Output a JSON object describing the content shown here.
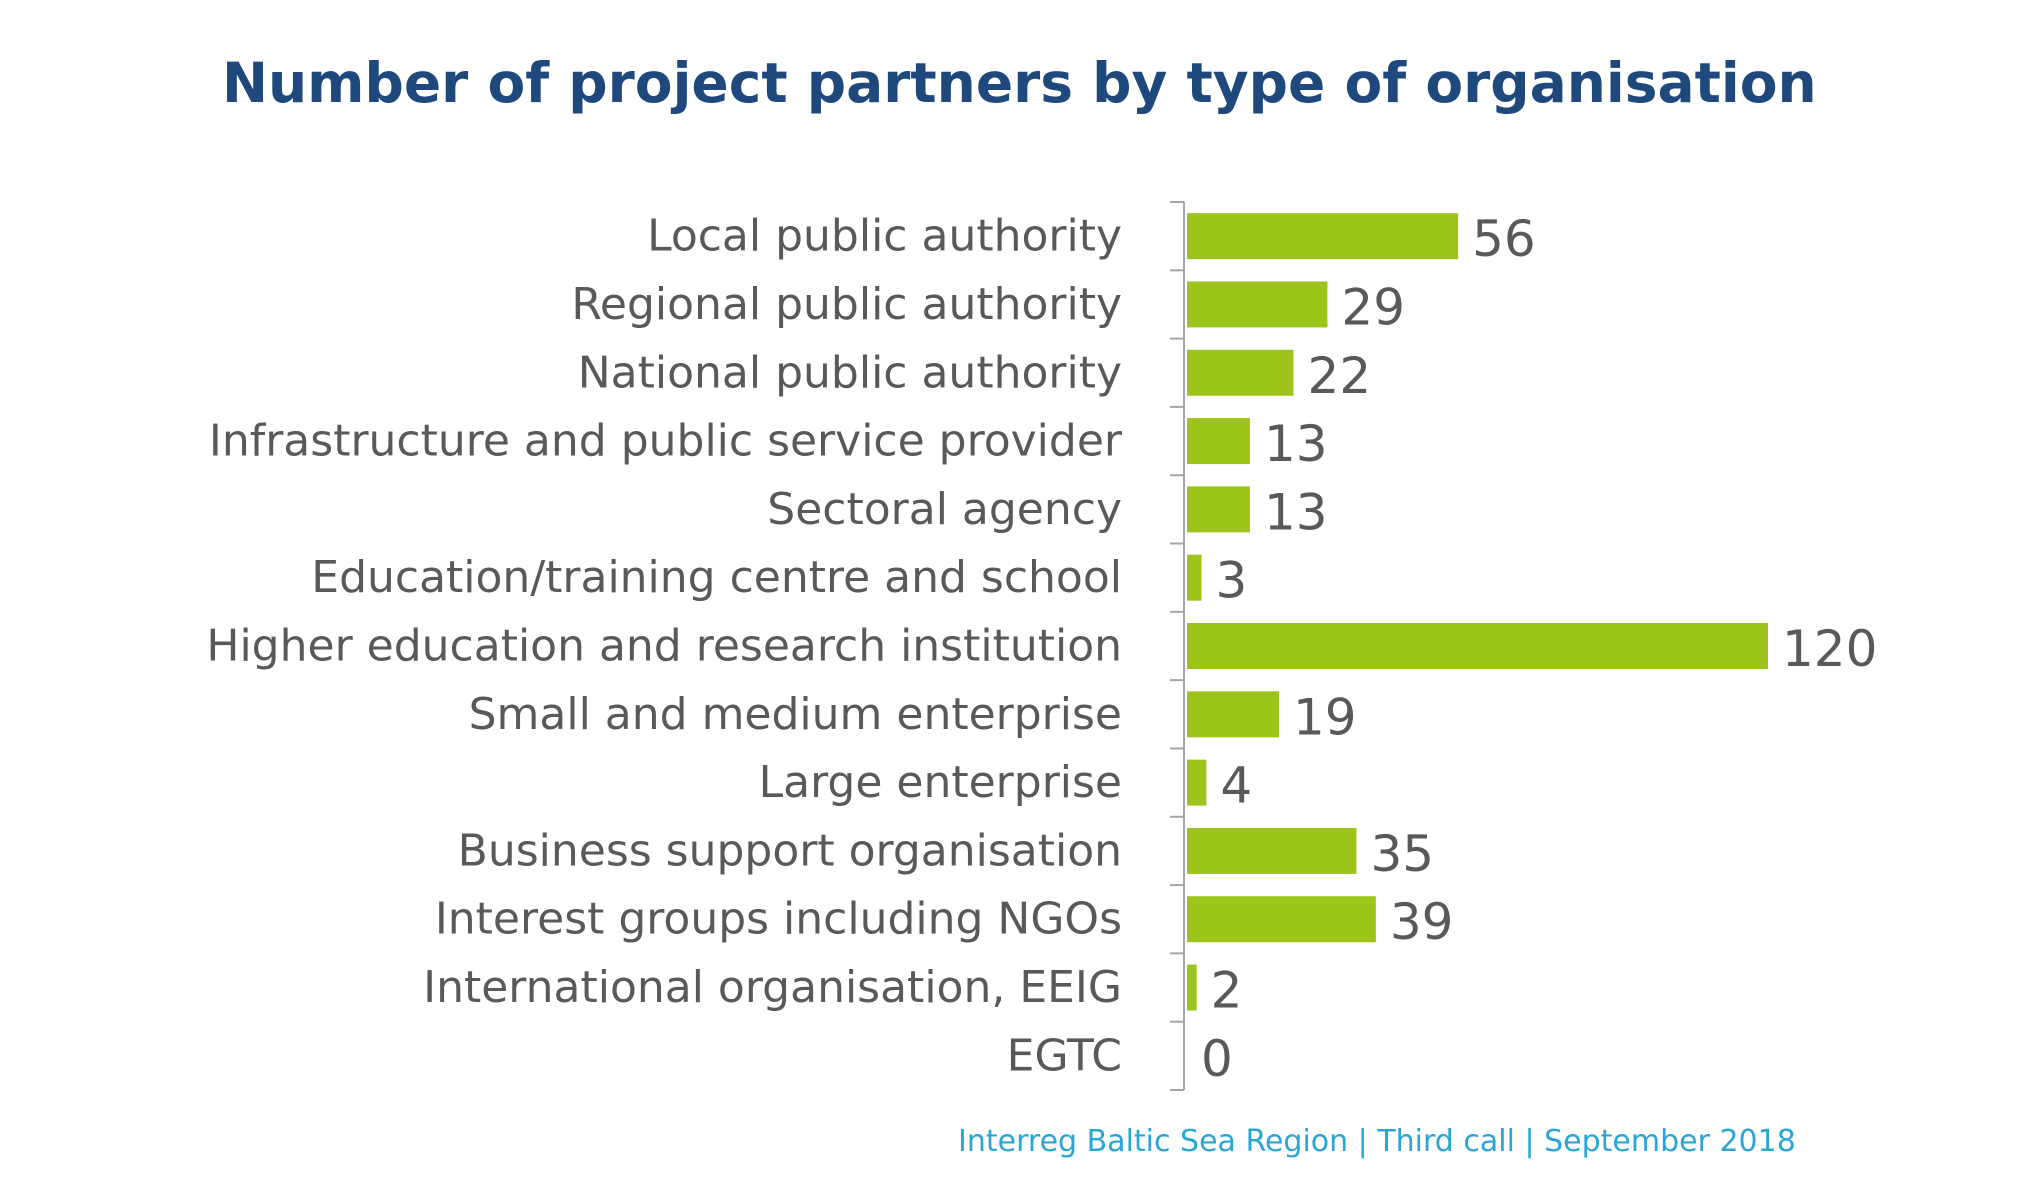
{
  "chart_data": {
    "type": "bar",
    "orientation": "horizontal",
    "title": "Number of project partners by type of organisation",
    "categories": [
      "Local public authority",
      "Regional public authority",
      "National public authority",
      "Infrastructure and public service provider",
      "Sectoral agency",
      "Education/training centre and school",
      "Higher education and research institution",
      "Small and medium enterprise",
      "Large enterprise",
      "Business support organisation",
      "Interest groups including NGOs",
      "International organisation, EEIG",
      "EGTC"
    ],
    "values": [
      56,
      29,
      22,
      13,
      13,
      3,
      120,
      19,
      4,
      35,
      39,
      2,
      0
    ],
    "xlim": [
      0,
      120
    ],
    "xlabel": "",
    "ylabel": "",
    "grid": false,
    "legend": "none",
    "data_labels": true,
    "bar_color": "#9dc41a"
  },
  "colors": {
    "title": "#1f497d",
    "labels": "#595959",
    "axis": "#a6a6a6",
    "footer": "#2aa6d6"
  },
  "footer": "Interreg Baltic Sea Region | Third call | September 2018"
}
